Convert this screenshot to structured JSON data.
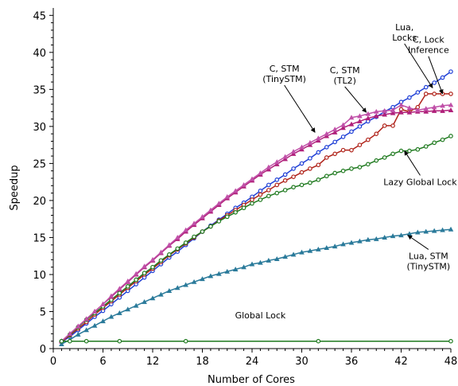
{
  "chart_data": {
    "type": "line",
    "title": "",
    "xlabel": "Number of Cores",
    "ylabel": "Speedup",
    "xlim": [
      0,
      48
    ],
    "ylim": [
      0,
      46
    ],
    "xticks": [
      0,
      6,
      12,
      18,
      24,
      30,
      36,
      42,
      48
    ],
    "yticks": [
      0,
      5,
      10,
      15,
      20,
      25,
      30,
      35,
      40,
      45
    ],
    "grid": false,
    "legend": "none",
    "series": [
      {
        "name": "Lua, Locks",
        "color": "#1f3fd6",
        "marker": "circle",
        "x": [
          1,
          2,
          3,
          4,
          5,
          6,
          7,
          8,
          9,
          10,
          11,
          12,
          13,
          14,
          15,
          16,
          17,
          18,
          19,
          20,
          21,
          22,
          23,
          24,
          25,
          26,
          27,
          28,
          29,
          30,
          31,
          32,
          33,
          34,
          35,
          36,
          37,
          38,
          39,
          40,
          41,
          42,
          43,
          44,
          45,
          46,
          47,
          48
        ],
        "y": [
          0.9,
          1.6,
          2.5,
          3.4,
          4.3,
          5.1,
          6.0,
          6.9,
          7.8,
          8.7,
          9.6,
          10.5,
          11.4,
          12.3,
          13.1,
          14.0,
          14.9,
          15.8,
          16.6,
          17.4,
          18.2,
          19.0,
          19.7,
          20.5,
          21.3,
          22.1,
          22.8,
          23.5,
          24.3,
          25.0,
          25.7,
          26.5,
          27.2,
          27.9,
          28.6,
          29.3,
          30.0,
          30.7,
          31.3,
          32.0,
          32.6,
          33.3,
          33.9,
          34.6,
          35.3,
          35.9,
          36.6,
          37.4
        ]
      },
      {
        "name": "C, Lock Inference",
        "color": "#b0231a",
        "marker": "circle",
        "x": [
          1,
          2,
          3,
          4,
          5,
          6,
          7,
          8,
          9,
          10,
          11,
          12,
          13,
          14,
          15,
          16,
          17,
          18,
          19,
          20,
          21,
          22,
          23,
          24,
          25,
          26,
          27,
          28,
          29,
          30,
          31,
          32,
          33,
          34,
          35,
          36,
          37,
          38,
          39,
          40,
          41,
          42,
          43,
          44,
          45,
          46,
          47,
          48
        ],
        "y": [
          0.9,
          1.8,
          2.7,
          3.6,
          4.6,
          5.5,
          6.4,
          7.3,
          8.2,
          9.1,
          10.0,
          10.8,
          11.7,
          12.6,
          13.4,
          14.2,
          15.0,
          15.8,
          16.5,
          17.3,
          18.0,
          18.7,
          19.4,
          20.1,
          20.8,
          21.4,
          22.1,
          22.7,
          23.2,
          23.8,
          24.3,
          24.8,
          25.8,
          26.3,
          26.8,
          26.8,
          27.5,
          28.2,
          29.0,
          30.1,
          30.1,
          32.3,
          32.0,
          32.6,
          34.4,
          34.4,
          34.4,
          34.4
        ]
      },
      {
        "name": "Lazy Global Lock",
        "color": "#1f7a1f",
        "marker": "circle",
        "x": [
          1,
          2,
          3,
          4,
          5,
          6,
          7,
          8,
          9,
          10,
          11,
          12,
          13,
          14,
          15,
          16,
          17,
          18,
          19,
          20,
          21,
          22,
          23,
          24,
          25,
          26,
          27,
          28,
          29,
          30,
          31,
          32,
          33,
          34,
          35,
          36,
          37,
          38,
          39,
          40,
          41,
          42,
          43,
          44,
          45,
          46,
          47,
          48
        ],
        "y": [
          1.0,
          1.9,
          2.9,
          3.9,
          4.8,
          5.7,
          6.6,
          7.5,
          8.4,
          9.3,
          10.2,
          11.0,
          11.9,
          12.7,
          13.5,
          14.3,
          15.1,
          15.8,
          16.5,
          17.2,
          17.8,
          18.4,
          19.0,
          19.6,
          20.1,
          20.6,
          21.0,
          21.4,
          21.8,
          22.1,
          22.4,
          22.8,
          23.3,
          23.7,
          24.0,
          24.3,
          24.5,
          24.9,
          25.4,
          25.8,
          26.3,
          26.7,
          26.7,
          26.9,
          27.3,
          27.8,
          28.2,
          28.7
        ]
      },
      {
        "name": "C, STM (TinySTM)",
        "color": "#b0207a",
        "marker": "triangle",
        "x": [
          1,
          2,
          3,
          4,
          5,
          6,
          7,
          8,
          9,
          10,
          11,
          12,
          13,
          14,
          15,
          16,
          17,
          18,
          19,
          20,
          21,
          22,
          23,
          24,
          25,
          26,
          27,
          28,
          29,
          30,
          31,
          32,
          33,
          34,
          35,
          36,
          37,
          38,
          39,
          40,
          41,
          42,
          43,
          44,
          45,
          46,
          47,
          48
        ],
        "y": [
          1.0,
          2.0,
          3.0,
          4.0,
          5.0,
          6.0,
          7.0,
          8.0,
          9.0,
          10.0,
          11.0,
          11.9,
          12.9,
          13.9,
          14.8,
          15.8,
          16.7,
          17.6,
          18.5,
          19.4,
          20.3,
          21.1,
          21.9,
          22.7,
          23.5,
          24.2,
          24.9,
          25.6,
          26.3,
          26.9,
          27.5,
          28.1,
          28.7,
          29.2,
          29.8,
          30.3,
          30.7,
          31.1,
          31.4,
          31.6,
          31.8,
          31.9,
          31.9,
          32.0,
          32.0,
          32.1,
          32.1,
          32.2
        ]
      },
      {
        "name": "C, STM (TL2)",
        "color": "#c050a8",
        "marker": "triangle",
        "x": [
          1,
          2,
          3,
          4,
          5,
          6,
          7,
          8,
          9,
          10,
          11,
          12,
          13,
          14,
          15,
          16,
          17,
          18,
          19,
          20,
          21,
          22,
          23,
          24,
          25,
          26,
          27,
          28,
          29,
          30,
          31,
          32,
          33,
          34,
          35,
          36,
          37,
          38,
          39,
          40,
          41,
          42,
          43,
          44,
          45,
          46,
          47,
          48
        ],
        "y": [
          1.0,
          2.0,
          3.0,
          4.0,
          5.0,
          6.0,
          7.1,
          8.1,
          9.1,
          10.1,
          11.1,
          12.0,
          13.0,
          14.0,
          15.0,
          16.0,
          16.9,
          17.8,
          18.7,
          19.6,
          20.5,
          21.3,
          22.1,
          22.9,
          23.7,
          24.5,
          25.2,
          25.9,
          26.6,
          27.2,
          27.8,
          28.4,
          29.0,
          29.6,
          30.2,
          31.2,
          31.4,
          31.7,
          32.0,
          32.1,
          32.2,
          32.9,
          32.5,
          32.2,
          32.4,
          32.6,
          32.8,
          32.9
        ]
      },
      {
        "name": "Lua, STM (TinySTM)",
        "color": "#2a7a9a",
        "marker": "triangle",
        "x": [
          1,
          2,
          3,
          4,
          5,
          6,
          7,
          8,
          9,
          10,
          11,
          12,
          13,
          14,
          15,
          16,
          17,
          18,
          19,
          20,
          21,
          22,
          23,
          24,
          25,
          26,
          27,
          28,
          29,
          30,
          31,
          32,
          33,
          34,
          35,
          36,
          37,
          38,
          39,
          40,
          41,
          42,
          43,
          44,
          45,
          46,
          47,
          48
        ],
        "y": [
          0.6,
          1.2,
          1.9,
          2.5,
          3.1,
          3.7,
          4.3,
          4.8,
          5.3,
          5.8,
          6.3,
          6.8,
          7.3,
          7.8,
          8.2,
          8.6,
          9.0,
          9.4,
          9.8,
          10.1,
          10.4,
          10.7,
          11.0,
          11.4,
          11.6,
          11.9,
          12.1,
          12.4,
          12.7,
          13.0,
          13.2,
          13.4,
          13.6,
          13.8,
          14.1,
          14.3,
          14.5,
          14.7,
          14.8,
          15.0,
          15.2,
          15.3,
          15.5,
          15.7,
          15.8,
          15.9,
          16.0,
          16.1
        ]
      },
      {
        "name": "Global Lock",
        "color": "#1f7a1f",
        "marker": "circle",
        "x": [
          1,
          2,
          4,
          8,
          16,
          32,
          48
        ],
        "y": [
          1.0,
          1.0,
          1.0,
          1.0,
          1.0,
          1.0,
          1.0
        ]
      }
    ],
    "annotations": [
      {
        "lines": [
          "Lua,",
          "Locks"
        ],
        "x": 42.4,
        "y": 43.0,
        "arrow_to": [
          45.8,
          35.2
        ]
      },
      {
        "lines": [
          "C, Lock",
          "Inference"
        ],
        "x": 45.3,
        "y": 41.3,
        "arrow_to": [
          47.0,
          34.4
        ]
      },
      {
        "lines": [
          "C, STM",
          "(TinySTM)"
        ],
        "x": 27.9,
        "y": 37.4,
        "arrow_to": [
          31.6,
          29.2
        ]
      },
      {
        "lines": [
          "C, STM",
          "(TL2)"
        ],
        "x": 35.2,
        "y": 37.2,
        "arrow_to": [
          37.8,
          31.9
        ]
      },
      {
        "lines": [
          "Lazy Global Lock"
        ],
        "x": 44.3,
        "y": 22.1,
        "arrow_to": [
          42.4,
          26.7
        ]
      },
      {
        "lines": [
          "Lua, STM",
          "(TinySTM)"
        ],
        "x": 45.3,
        "y": 12.1,
        "arrow_to": [
          42.8,
          15.3
        ]
      },
      {
        "lines": [
          "Global Lock"
        ],
        "x": 25.0,
        "y": 4.1,
        "arrow_to": null
      }
    ]
  }
}
